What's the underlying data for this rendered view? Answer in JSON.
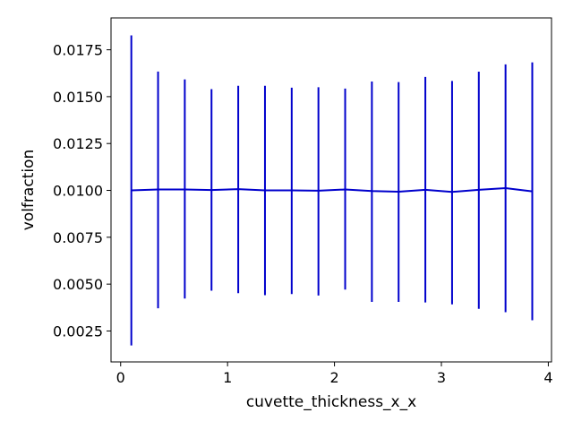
{
  "chart_data": {
    "type": "line",
    "xlabel": "cuvette_thickness_x_x",
    "ylabel": "volfraction",
    "xlim": [
      -0.09,
      4.03
    ],
    "ylim": [
      0.00085,
      0.0192
    ],
    "xticks": [
      0,
      1,
      2,
      3,
      4
    ],
    "xtick_labels": [
      "0",
      "1",
      "2",
      "3",
      "4"
    ],
    "yticks": [
      0.0025,
      0.005,
      0.0075,
      0.01,
      0.0125,
      0.015,
      0.0175
    ],
    "ytick_labels": [
      "0.0025",
      "0.0050",
      "0.0075",
      "0.0100",
      "0.0125",
      "0.0150",
      "0.0175"
    ],
    "grid": false,
    "series": [
      {
        "color": "#0000cc",
        "x": [
          0.1,
          0.35,
          0.6,
          0.85,
          1.1,
          1.35,
          1.6,
          1.85,
          2.1,
          2.35,
          2.6,
          2.85,
          3.1,
          3.35,
          3.6,
          3.85
        ],
        "y": [
          0.01,
          0.01005,
          0.01005,
          0.01002,
          0.01007,
          0.01,
          0.01,
          0.00998,
          0.01005,
          0.00997,
          0.00993,
          0.01003,
          0.00992,
          0.01003,
          0.01012,
          0.00995
        ],
        "yerr_low": [
          0.00173,
          0.00371,
          0.00423,
          0.00465,
          0.00452,
          0.00441,
          0.00447,
          0.00439,
          0.00471,
          0.00405,
          0.00405,
          0.00402,
          0.00392,
          0.00368,
          0.0035,
          0.00307
        ],
        "yerr_high": [
          0.01827,
          0.01634,
          0.01592,
          0.0154,
          0.01558,
          0.01558,
          0.01548,
          0.0155,
          0.01543,
          0.01581,
          0.01578,
          0.01605,
          0.01584,
          0.01633,
          0.01672,
          0.01683
        ]
      }
    ]
  }
}
